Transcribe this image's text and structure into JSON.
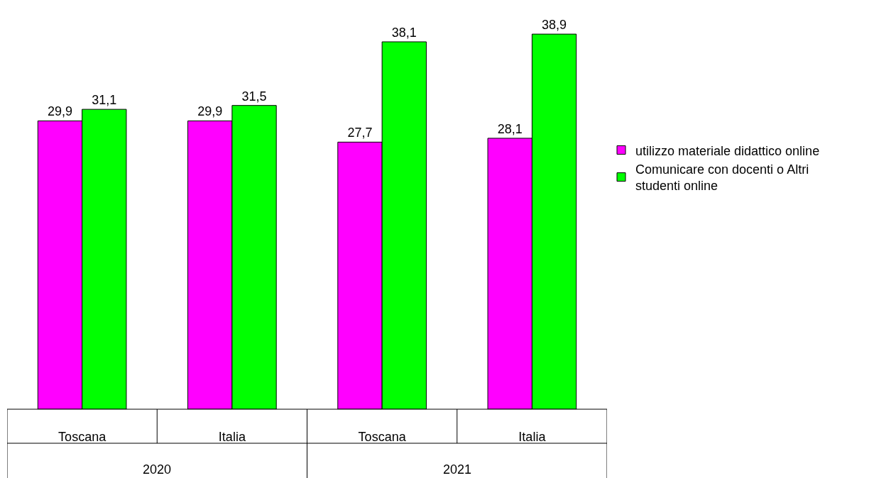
{
  "chart_data": {
    "type": "bar",
    "categories": [
      "Toscana",
      "Italia",
      "Toscana",
      "Italia"
    ],
    "series": [
      {
        "name": "utilizzo materiale didattico online",
        "color": "#ff00ff",
        "values": [
          29.9,
          29.9,
          27.7,
          28.1
        ],
        "value_labels": [
          "29,9",
          "29,9",
          "27,7",
          "28,1"
        ]
      },
      {
        "name": "Comunicare con docenti o Altri studenti online",
        "color": "#00ff00",
        "values": [
          31.1,
          31.5,
          38.1,
          38.9
        ],
        "value_labels": [
          "31,1",
          "31,5",
          "38,1",
          "38,9"
        ]
      }
    ],
    "annotations": [
      "2020",
      "2021"
    ],
    "legend": "right"
  }
}
